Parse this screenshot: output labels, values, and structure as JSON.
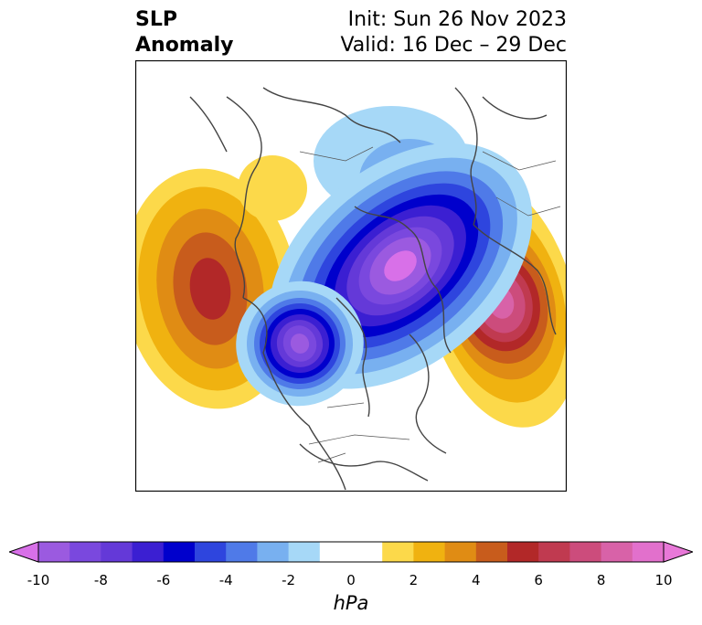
{
  "title": {
    "left_line1": "SLP",
    "left_line2": "Anomaly",
    "right_line1": "Init: Sun 26 Nov 2023",
    "right_line2": "Valid: 16 Dec – 29 Dec"
  },
  "map": {
    "projection": "north polar stereographic",
    "field": "sea level pressure anomaly",
    "features": [
      {
        "name": "North Pacific high anomaly",
        "sign": "positive",
        "peak_hpa": 6
      },
      {
        "name": "Arctic / Scandinavia low anomaly",
        "sign": "negative",
        "peak_hpa": -10
      },
      {
        "name": "Central Canada low anomaly",
        "sign": "negative",
        "peak_hpa": -10
      },
      {
        "name": "Siberia high anomaly",
        "sign": "positive",
        "peak_hpa": 9
      },
      {
        "name": "Bering Sea weak high anomaly",
        "sign": "positive",
        "peak_hpa": 1
      }
    ]
  },
  "colorbar": {
    "unit": "hPa",
    "extend": "both",
    "tick_labels": [
      "-10",
      "-8",
      "-6",
      "-4",
      "-2",
      "0",
      "2",
      "4",
      "6",
      "8",
      "10"
    ],
    "bins": [
      {
        "lo": -10,
        "hi": -9,
        "color": "#9b5ae0"
      },
      {
        "lo": -9,
        "hi": -8,
        "color": "#7a48de"
      },
      {
        "lo": -8,
        "hi": -7,
        "color": "#6439d8"
      },
      {
        "lo": -7,
        "hi": -6,
        "color": "#3b1fd2"
      },
      {
        "lo": -6,
        "hi": -5,
        "color": "#0000cc"
      },
      {
        "lo": -5,
        "hi": -4,
        "color": "#2e45de"
      },
      {
        "lo": -4,
        "hi": -3,
        "color": "#4f7ae8"
      },
      {
        "lo": -3,
        "hi": -2,
        "color": "#78b0f0"
      },
      {
        "lo": -2,
        "hi": -1,
        "color": "#a6d8f7"
      },
      {
        "lo": -1,
        "hi": 1,
        "color": "#ffffff"
      },
      {
        "lo": 1,
        "hi": 2,
        "color": "#fcd94a"
      },
      {
        "lo": 2,
        "hi": 3,
        "color": "#f0b210"
      },
      {
        "lo": 3,
        "hi": 4,
        "color": "#e08c14"
      },
      {
        "lo": 4,
        "hi": 5,
        "color": "#c85c1c"
      },
      {
        "lo": 5,
        "hi": 6,
        "color": "#b22828"
      },
      {
        "lo": 6,
        "hi": 7,
        "color": "#c03a50"
      },
      {
        "lo": 7,
        "hi": 8,
        "color": "#cc4c7c"
      },
      {
        "lo": 8,
        "hi": 9,
        "color": "#d862a8"
      },
      {
        "lo": 9,
        "hi": 10,
        "color": "#e270cc"
      }
    ],
    "under_color": "#d870e8",
    "over_color": "#e878d8"
  }
}
